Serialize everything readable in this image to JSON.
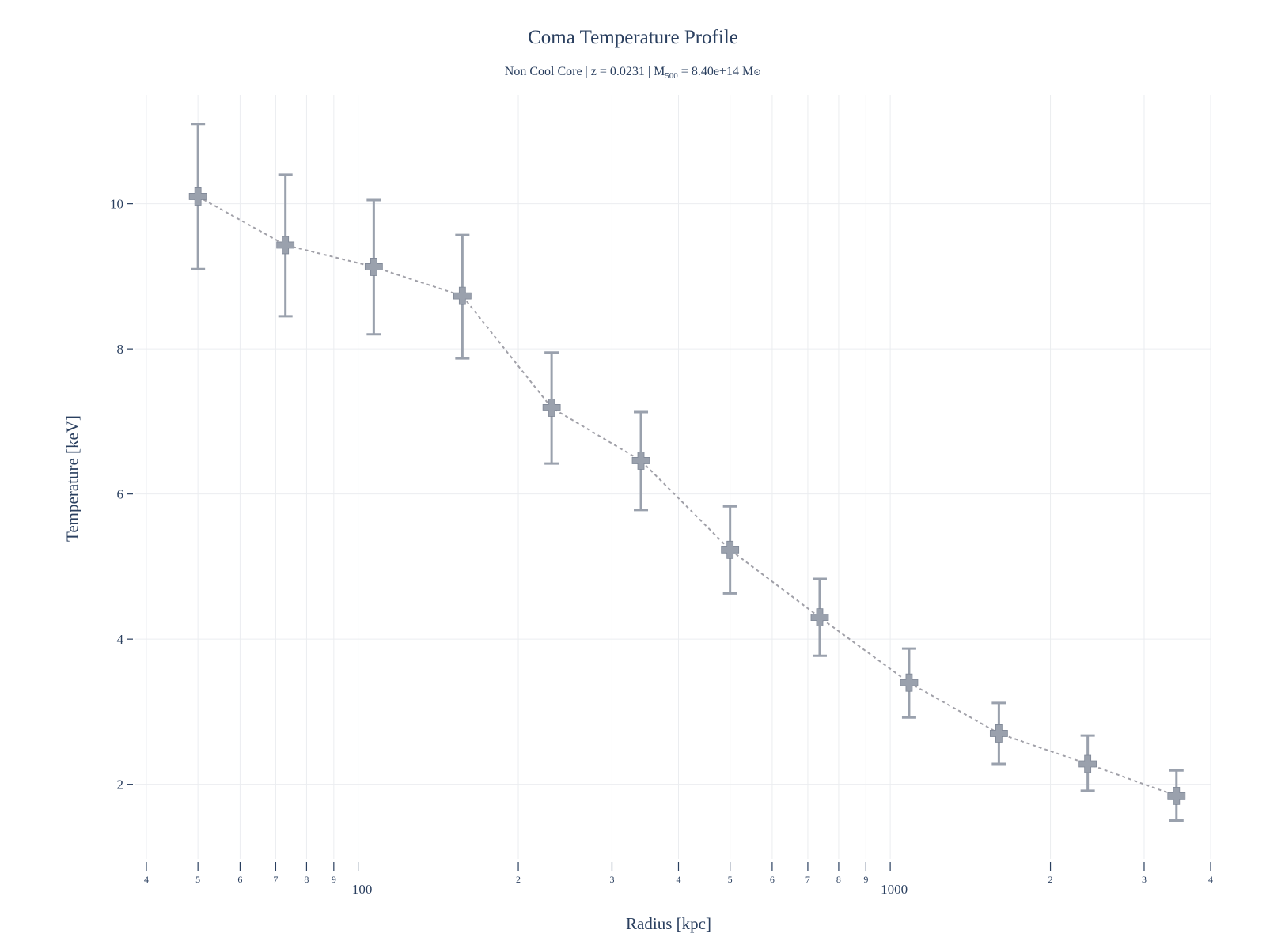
{
  "chart_data": {
    "type": "scatter",
    "title": "Coma Temperature Profile",
    "subtitle": {
      "prefix": "Non Cool Core | z = 0.0231 | M",
      "sub": "500",
      "middle": " = 8.40e+14 M",
      "sun": "⊙"
    },
    "xlabel": "Radius [kpc]",
    "ylabel": "Temperature [keV]",
    "x_scale": "log",
    "xlim": [
      38,
      4000
    ],
    "ylim": [
      0.95,
      11.5
    ],
    "x_major_ticks": [
      {
        "value": 100,
        "label": "100"
      },
      {
        "value": 1000,
        "label": "1000"
      }
    ],
    "x_minor_ticks": [
      {
        "value": 40,
        "label": "4"
      },
      {
        "value": 50,
        "label": "5"
      },
      {
        "value": 60,
        "label": "6"
      },
      {
        "value": 70,
        "label": "7"
      },
      {
        "value": 80,
        "label": "8"
      },
      {
        "value": 90,
        "label": "9"
      },
      {
        "value": 200,
        "label": "2"
      },
      {
        "value": 300,
        "label": "3"
      },
      {
        "value": 400,
        "label": "4"
      },
      {
        "value": 500,
        "label": "5"
      },
      {
        "value": 600,
        "label": "6"
      },
      {
        "value": 700,
        "label": "7"
      },
      {
        "value": 800,
        "label": "8"
      },
      {
        "value": 900,
        "label": "9"
      },
      {
        "value": 2000,
        "label": "2"
      },
      {
        "value": 3000,
        "label": "3"
      },
      {
        "value": 4000,
        "label": "4"
      }
    ],
    "y_ticks": [
      {
        "value": 2,
        "label": "2"
      },
      {
        "value": 4,
        "label": "4"
      },
      {
        "value": 6,
        "label": "6"
      },
      {
        "value": 8,
        "label": "8"
      },
      {
        "value": 10,
        "label": "10"
      }
    ],
    "grid": true,
    "color": "#9aa1ad",
    "line_color": "#a0a0a8",
    "series": [
      {
        "points": [
          {
            "x": 50,
            "y": 10.1,
            "err_low": 9.1,
            "err_high": 11.1
          },
          {
            "x": 73,
            "y": 9.43,
            "err_low": 8.45,
            "err_high": 10.4
          },
          {
            "x": 107,
            "y": 9.13,
            "err_low": 8.2,
            "err_high": 10.05
          },
          {
            "x": 157,
            "y": 8.73,
            "err_low": 7.87,
            "err_high": 9.57
          },
          {
            "x": 231,
            "y": 7.19,
            "err_low": 6.42,
            "err_high": 7.95
          },
          {
            "x": 340,
            "y": 6.46,
            "err_low": 5.78,
            "err_high": 7.13
          },
          {
            "x": 500,
            "y": 5.23,
            "err_low": 4.63,
            "err_high": 5.83
          },
          {
            "x": 737,
            "y": 4.3,
            "err_low": 3.77,
            "err_high": 4.83
          },
          {
            "x": 1085,
            "y": 3.4,
            "err_low": 2.92,
            "err_high": 3.87
          },
          {
            "x": 1600,
            "y": 2.7,
            "err_low": 2.28,
            "err_high": 3.12
          },
          {
            "x": 2350,
            "y": 2.28,
            "err_low": 1.91,
            "err_high": 2.67
          },
          {
            "x": 3450,
            "y": 1.84,
            "err_low": 1.5,
            "err_high": 2.19
          }
        ]
      }
    ]
  }
}
